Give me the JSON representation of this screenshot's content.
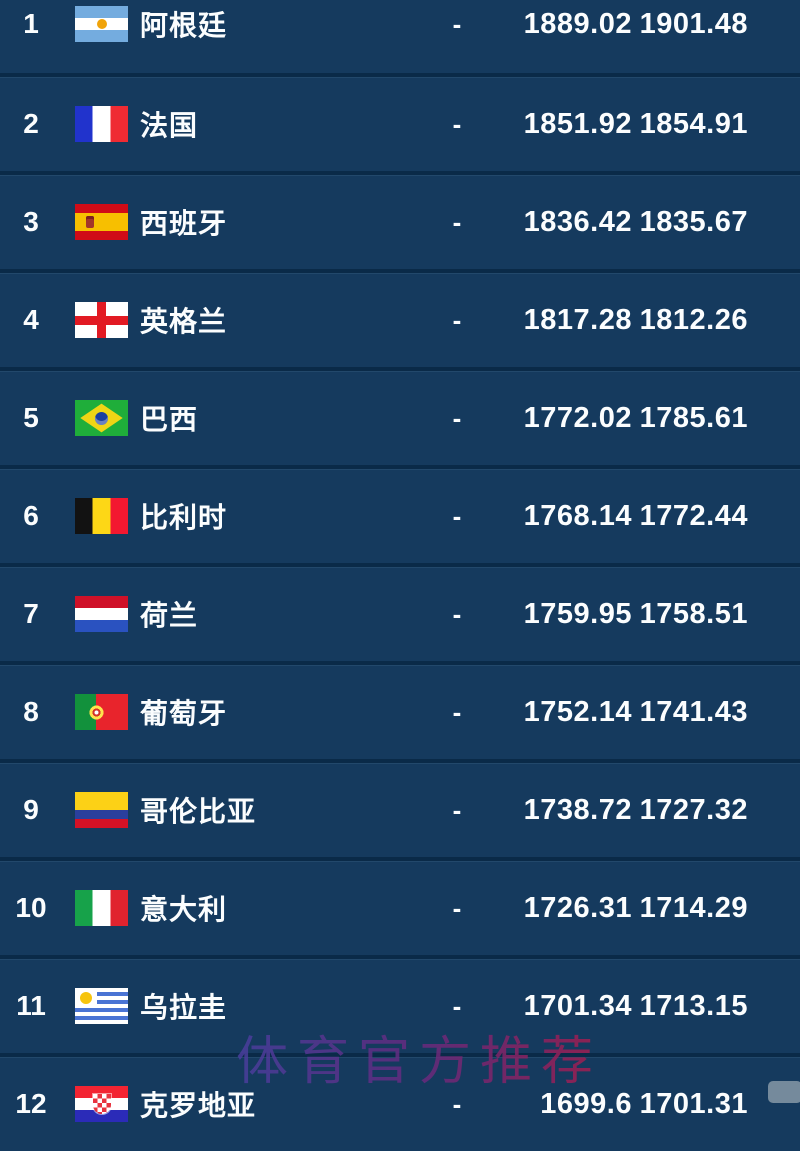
{
  "table": {
    "rows": [
      {
        "rank": "1",
        "flag": "argentina",
        "team": "阿根廷",
        "change": "-",
        "points": "1889.02",
        "points_prev": "1901.48"
      },
      {
        "rank": "2",
        "flag": "france",
        "team": "法国",
        "change": "-",
        "points": "1851.92",
        "points_prev": "1854.91"
      },
      {
        "rank": "3",
        "flag": "spain",
        "team": "西班牙",
        "change": "-",
        "points": "1836.42",
        "points_prev": "1835.67"
      },
      {
        "rank": "4",
        "flag": "england",
        "team": "英格兰",
        "change": "-",
        "points": "1817.28",
        "points_prev": "1812.26"
      },
      {
        "rank": "5",
        "flag": "brazil",
        "team": "巴西",
        "change": "-",
        "points": "1772.02",
        "points_prev": "1785.61"
      },
      {
        "rank": "6",
        "flag": "belgium",
        "team": "比利时",
        "change": "-",
        "points": "1768.14",
        "points_prev": "1772.44"
      },
      {
        "rank": "7",
        "flag": "netherlands",
        "team": "荷兰",
        "change": "-",
        "points": "1759.95",
        "points_prev": "1758.51"
      },
      {
        "rank": "8",
        "flag": "portugal",
        "team": "葡萄牙",
        "change": "-",
        "points": "1752.14",
        "points_prev": "1741.43"
      },
      {
        "rank": "9",
        "flag": "colombia",
        "team": "哥伦比亚",
        "change": "-",
        "points": "1738.72",
        "points_prev": "1727.32"
      },
      {
        "rank": "10",
        "flag": "italy",
        "team": "意大利",
        "change": "-",
        "points": "1726.31",
        "points_prev": "1714.29"
      },
      {
        "rank": "11",
        "flag": "uruguay",
        "team": "乌拉圭",
        "change": "-",
        "points": "1701.34",
        "points_prev": "1713.15"
      },
      {
        "rank": "12",
        "flag": "croatia",
        "team": "克罗地亚",
        "change": "-",
        "points": "1699.6",
        "points_prev": "1701.31"
      }
    ]
  },
  "watermark": {
    "text": "体育官方推荐"
  },
  "colors": {
    "background": "#153a5e",
    "divider": "#0a2a48",
    "text": "#fbfdfe",
    "watermark_left": "#4b3fa0",
    "watermark_right": "#a91d4e"
  }
}
